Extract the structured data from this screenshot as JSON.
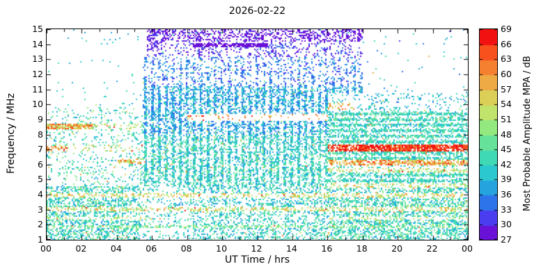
{
  "title": "2026-02-22",
  "axes": {
    "x": {
      "label": "UT Time / hrs",
      "range": [
        0,
        24
      ],
      "tick_hours": [
        0,
        2,
        4,
        6,
        8,
        10,
        12,
        14,
        16,
        18,
        20,
        22,
        24
      ],
      "tick_labels": [
        "00",
        "02",
        "04",
        "06",
        "08",
        "10",
        "12",
        "14",
        "16",
        "18",
        "20",
        "22",
        "00"
      ]
    },
    "y": {
      "label": "Frequency / MHz",
      "range": [
        1,
        15
      ],
      "ticks": [
        1,
        2,
        3,
        4,
        5,
        6,
        7,
        8,
        9,
        10,
        11,
        12,
        13,
        14,
        15
      ]
    }
  },
  "colorbar": {
    "label": "Most Probable Amplitude MPA / dB",
    "min": 27,
    "max": 69,
    "ticks": [
      27,
      30,
      33,
      36,
      39,
      42,
      45,
      48,
      51,
      54,
      57,
      60,
      63,
      66,
      69
    ],
    "bin_colors": [
      "#6a11d8",
      "#4a3df0",
      "#2d74ea",
      "#24a3de",
      "#2cc8cf",
      "#3fd9b6",
      "#66e29b",
      "#93e97f",
      "#c0e36b",
      "#dccf58",
      "#eeaa45",
      "#f58030",
      "#f8511d",
      "#f21111"
    ]
  },
  "chart_data": {
    "type": "heatmap",
    "title": "2026-02-22",
    "xlabel": "UT Time / hrs",
    "ylabel": "Frequency / MHz",
    "clabel": "Most Probable Amplitude MPA / dB",
    "x_range": [
      0,
      24
    ],
    "y_range": [
      1,
      15
    ],
    "c_range": [
      27,
      69
    ],
    "description": "Speckled HF noise-amplitude spectrogram: cyan/green noise floor (39-48 dB) below ~10 MHz at night; daytime block ~06-18 UT extends to 15 MHz with weak blue/purple amplitudes (27-39 dB) above 10 MHz and a purple line near 13.9 MHz ~08-13 UT; strong red bands near 7 and 6 MHz after 16 UT and near 8.5 MHz before ~03 UT; orange dotted bands near 2, 3 and 4 MHz; sparse gap at low frequencies ~05:30-08:30 UT.",
    "seed": 1234,
    "regions": [
      {
        "t": [
          0,
          24
        ],
        "f": [
          1,
          4.6
        ],
        "d": 0.48,
        "amp": 43,
        "sp": 6
      },
      {
        "t": [
          0,
          5.5
        ],
        "f": [
          4.6,
          9.8
        ],
        "d": 0.14,
        "amp": 43,
        "sp": 6
      },
      {
        "t": [
          0,
          5.5
        ],
        "f": [
          9.8,
          15
        ],
        "d": 0.012,
        "amp": 40,
        "sp": 5
      },
      {
        "t": [
          5.5,
          18
        ],
        "f": [
          8,
          11.2
        ],
        "d": 0.5,
        "amp": 38,
        "sp": 5,
        "stripes": "v"
      },
      {
        "t": [
          5.5,
          18
        ],
        "f": [
          11.2,
          13.2
        ],
        "d": 0.26,
        "amp": 35,
        "sp": 4,
        "stripes": "v"
      },
      {
        "t": [
          5.7,
          18
        ],
        "f": [
          13.2,
          14.2
        ],
        "d": 0.2,
        "amp": 31,
        "sp": 4
      },
      {
        "t": [
          5.7,
          18
        ],
        "f": [
          14.2,
          15
        ],
        "d": 0.38,
        "amp": 28,
        "sp": 3
      },
      {
        "t": [
          5.5,
          16
        ],
        "f": [
          4.6,
          8
        ],
        "d": 0.5,
        "amp": 42,
        "sp": 6,
        "stripes": "v"
      },
      {
        "t": [
          5.3,
          8.3
        ],
        "f": [
          1,
          4.6
        ],
        "d": 0.16,
        "amp": 42,
        "sp": 5
      },
      {
        "t": [
          8.3,
          16
        ],
        "f": [
          1,
          4.6
        ],
        "d": 0.34,
        "amp": 42,
        "sp": 6
      },
      {
        "t": [
          16,
          24
        ],
        "f": [
          4.6,
          9.6
        ],
        "d": 0.5,
        "amp": 43,
        "sp": 5,
        "stripes": "h"
      },
      {
        "t": [
          16,
          24
        ],
        "f": [
          9.6,
          10.8
        ],
        "d": 0.15,
        "amp": 40,
        "sp": 5
      },
      {
        "t": [
          18,
          24
        ],
        "f": [
          10.8,
          15
        ],
        "d": 0.012,
        "amp": 38,
        "sp": 6
      }
    ],
    "bands": [
      {
        "t": [
          0,
          5.5
        ],
        "f": [
          6.9,
          7.4
        ],
        "d": 0.22,
        "amp": 50,
        "sp": 8
      },
      {
        "t": [
          0,
          1.2
        ],
        "f": [
          6.9,
          7.3
        ],
        "d": 0.5,
        "amp": 61,
        "sp": 6
      },
      {
        "t": [
          0,
          2.6
        ],
        "f": [
          8.4,
          8.75
        ],
        "d": 0.8,
        "amp": 58,
        "sp": 8
      },
      {
        "t": [
          2.6,
          5.5
        ],
        "f": [
          8.4,
          8.7
        ],
        "d": 0.3,
        "amp": 52,
        "sp": 6
      },
      {
        "t": [
          4,
          5.6
        ],
        "f": [
          6.1,
          6.45
        ],
        "d": 0.45,
        "amp": 58,
        "sp": 8
      },
      {
        "t": [
          16,
          24
        ],
        "f": [
          6.9,
          7.35
        ],
        "d": 0.85,
        "amp": 66,
        "sp": 5
      },
      {
        "t": [
          16,
          24
        ],
        "f": [
          6.0,
          6.35
        ],
        "d": 0.6,
        "amp": 59,
        "sp": 7
      },
      {
        "t": [
          16,
          24
        ],
        "f": [
          5.5,
          5.75
        ],
        "d": 0.35,
        "amp": 52,
        "sp": 6
      },
      {
        "t": [
          16,
          24
        ],
        "f": [
          4.5,
          4.75
        ],
        "d": 0.3,
        "amp": 53,
        "sp": 6
      },
      {
        "t": [
          0,
          24
        ],
        "f": [
          3.9,
          4.15
        ],
        "d": 0.35,
        "amp": 54,
        "sp": 6
      },
      {
        "t": [
          0,
          24
        ],
        "f": [
          2.95,
          3.2
        ],
        "d": 0.4,
        "amp": 53,
        "sp": 6
      },
      {
        "t": [
          0,
          6
        ],
        "f": [
          2.35,
          2.55
        ],
        "d": 0.3,
        "amp": 51,
        "sp": 5
      },
      {
        "t": [
          16,
          24
        ],
        "f": [
          2.35,
          2.55
        ],
        "d": 0.3,
        "amp": 51,
        "sp": 5
      },
      {
        "t": [
          0,
          24
        ],
        "f": [
          1.8,
          2.0
        ],
        "d": 0.5,
        "amp": 47,
        "sp": 5
      },
      {
        "t": [
          8,
          16
        ],
        "f": [
          8.9,
          9.35
        ],
        "d": 0.07,
        "amp": 60,
        "sp": 7
      },
      {
        "t": [
          16,
          17.5
        ],
        "f": [
          9.7,
          10.1
        ],
        "d": 0.25,
        "amp": 58,
        "sp": 8
      },
      {
        "t": [
          8.3,
          12.6
        ],
        "f": [
          13.8,
          14.05
        ],
        "d": 0.85,
        "amp": 28,
        "sp": 2
      },
      {
        "t": [
          12.6,
          14.2
        ],
        "f": [
          13.75,
          13.95
        ],
        "d": 0.5,
        "amp": 33,
        "sp": 3
      },
      {
        "t": [
          5.7,
          6.6
        ],
        "f": [
          13.5,
          15
        ],
        "d": 0.5,
        "amp": 29,
        "sp": 3
      }
    ]
  }
}
